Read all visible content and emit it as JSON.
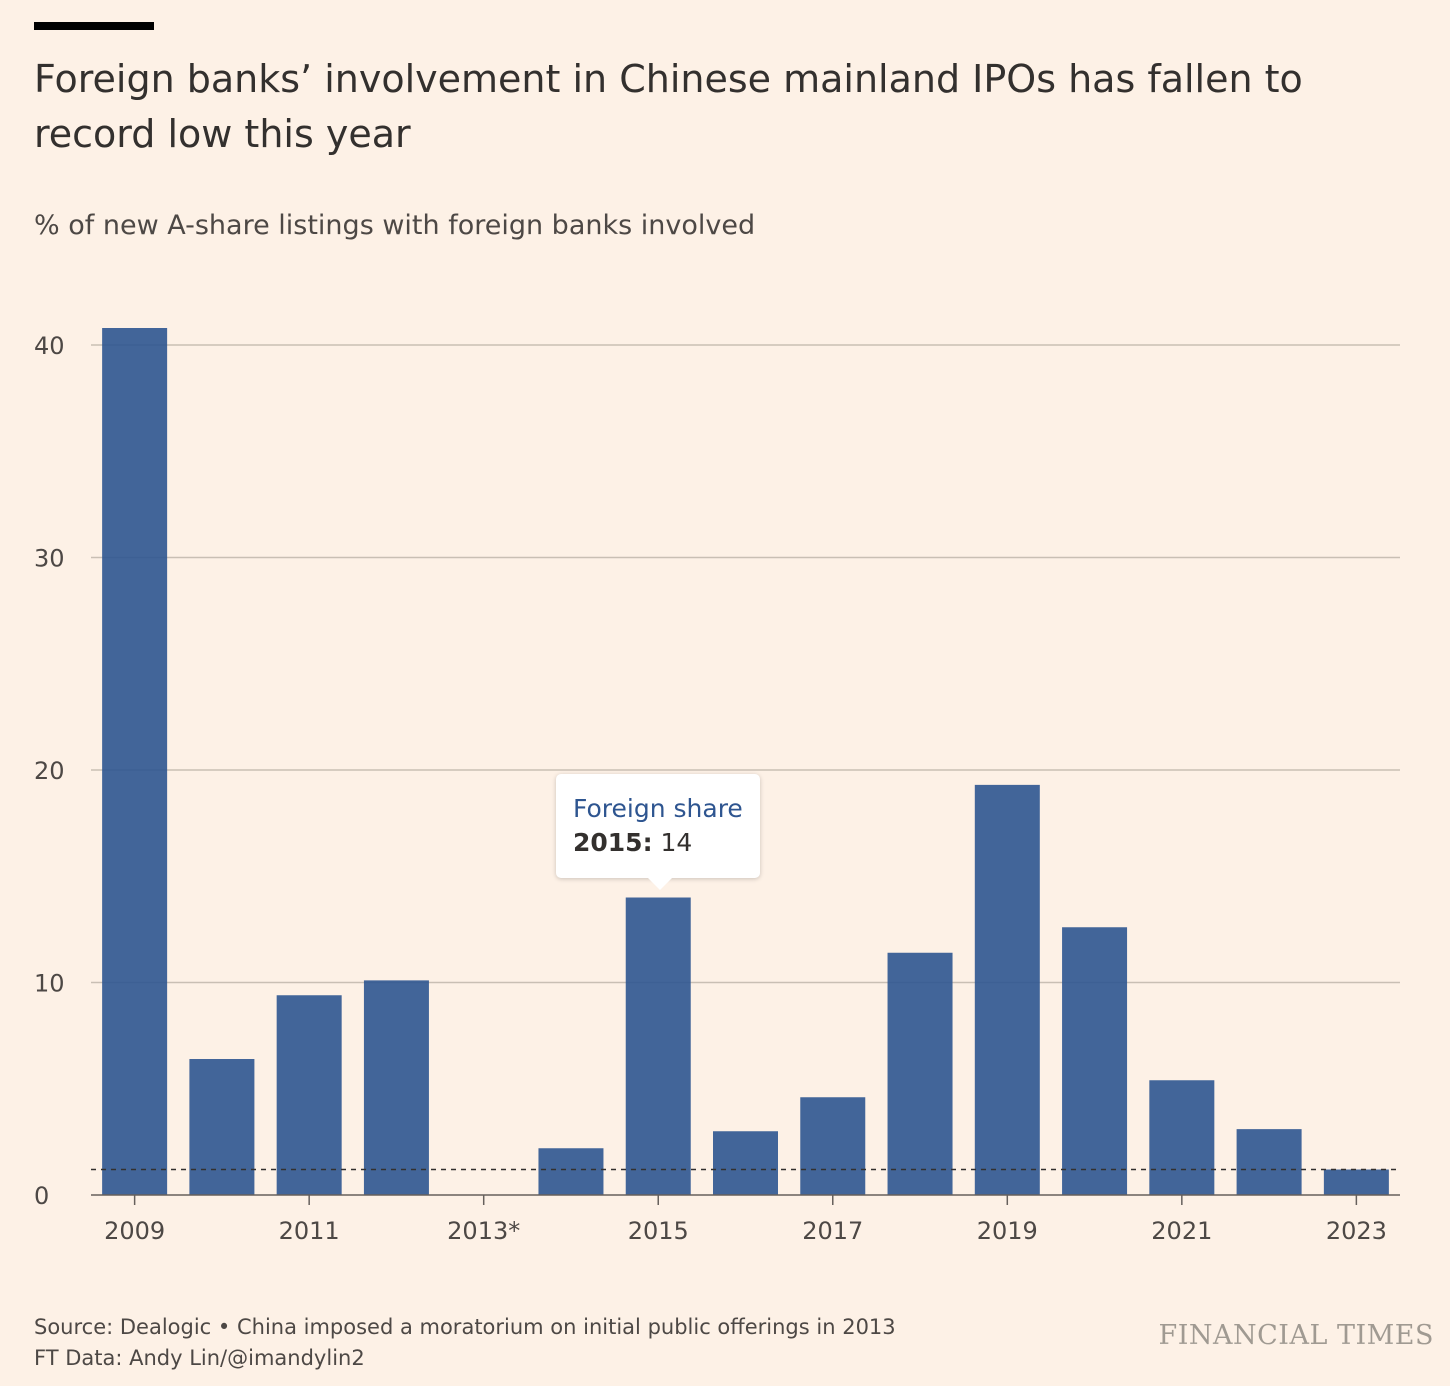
{
  "header": {
    "title": "Foreign banks’ involvement in Chinese mainland IPOs has fallen to record low this year",
    "subtitle": "% of new A-share listings with foreign banks involved"
  },
  "chart_data": {
    "type": "bar",
    "categories": [
      "2009",
      "2010",
      "2011",
      "2012",
      "2013*",
      "2014",
      "2015",
      "2016",
      "2017",
      "2018",
      "2019",
      "2020",
      "2021",
      "2022",
      "2023"
    ],
    "values": [
      40.8,
      6.4,
      9.4,
      10.1,
      0,
      2.2,
      14,
      3.0,
      4.6,
      11.4,
      19.3,
      12.6,
      5.4,
      3.1,
      1.2
    ],
    "x_tick_labels": [
      "2009",
      "2011",
      "2013*",
      "2015",
      "2017",
      "2019",
      "2021",
      "2023"
    ],
    "y_ticks": [
      0,
      10,
      20,
      30,
      40
    ],
    "ylim": [
      0,
      41
    ],
    "reference_line": 1.2,
    "bar_color": "#2e5590",
    "grid": true,
    "tooltip": {
      "series": "Foreign share",
      "year": "2015:",
      "value": "14"
    }
  },
  "footer": {
    "source": "Source: Dealogic • China imposed a moratorium on initial public offerings in 2013",
    "credit": "FT Data: Andy Lin/@imandylin2",
    "brand": "FINANCIAL TIMES"
  }
}
